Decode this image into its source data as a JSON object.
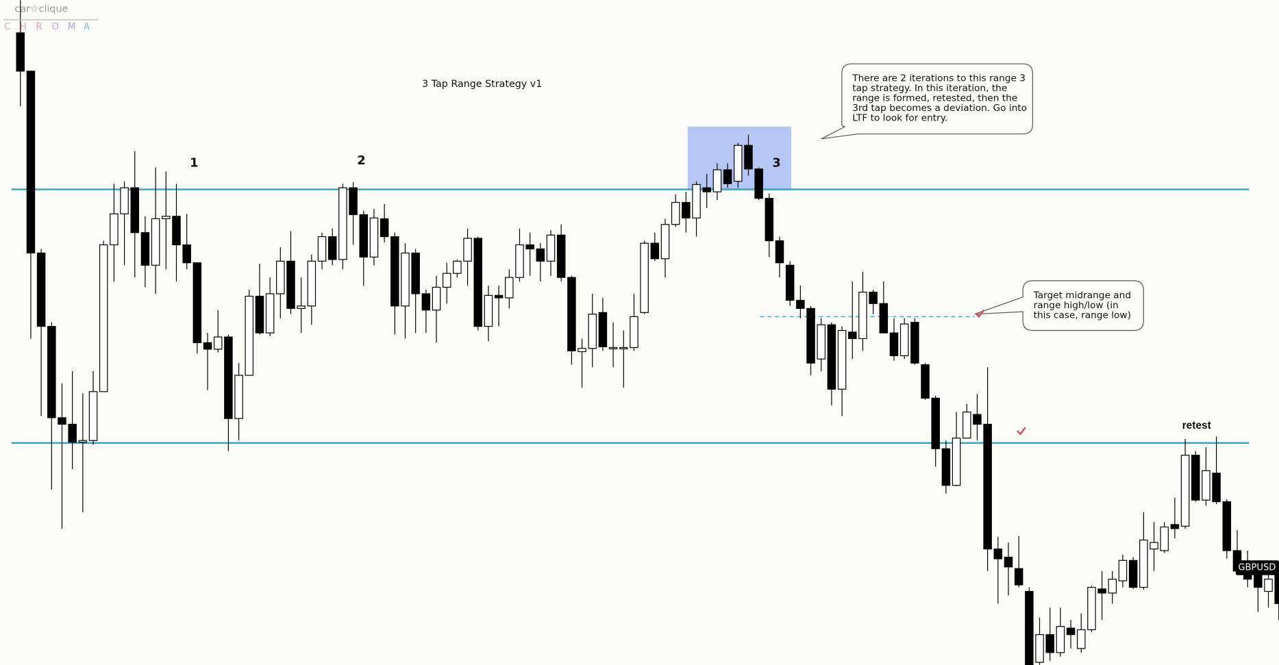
{
  "chart_data": {
    "type": "candlestick",
    "title": "3 Tap Range Strategy v1",
    "ylim": [
      0,
      815
    ],
    "open": [
      775,
      728,
      505,
      415,
      303,
      295,
      273,
      275,
      335,
      515,
      553,
      585,
      530,
      490,
      547,
      550,
      515,
      493,
      395,
      387,
      402,
      302,
      355,
      452,
      407,
      455,
      495,
      437,
      440,
      495,
      525,
      497,
      585,
      552,
      500,
      547,
      525,
      440,
      505,
      455,
      435,
      463,
      480,
      495,
      523,
      415,
      453,
      450,
      475,
      515,
      510,
      495,
      527,
      475,
      384,
      388,
      432,
      389,
      389,
      389,
      432,
      517,
      498,
      540,
      567,
      548,
      585,
      580,
      607,
      593,
      637,
      608,
      572,
      520,
      490,
      447,
      437,
      375,
      417,
      338,
      408,
      400,
      457,
      443,
      407,
      379,
      420,
      368,
      327,
      265,
      220,
      278,
      307,
      295,
      142,
      132,
      118,
      90,
      3,
      37,
      15,
      45,
      20,
      43,
      93,
      88,
      103,
      128,
      95,
      142,
      140,
      172,
      170,
      257,
      202,
      235,
      200,
      140,
      115,
      113,
      90,
      115
    ],
    "high": [
      815,
      728,
      510,
      420,
      345,
      360,
      333,
      360,
      520,
      590,
      593,
      630,
      550,
      610,
      605,
      590,
      553,
      493,
      407,
      435,
      405,
      370,
      460,
      492,
      475,
      512,
      532,
      475,
      503,
      530,
      535,
      590,
      592,
      557,
      559,
      565,
      530,
      517,
      510,
      460,
      477,
      493,
      497,
      535,
      525,
      465,
      465,
      485,
      535,
      530,
      517,
      533,
      540,
      477,
      400,
      455,
      450,
      420,
      410,
      455,
      520,
      530,
      547,
      577,
      580,
      593,
      602,
      615,
      615,
      640,
      650,
      610,
      578,
      525,
      495,
      465,
      440,
      425,
      420,
      415,
      470,
      482,
      460,
      470,
      425,
      425,
      425,
      370,
      330,
      275,
      310,
      320,
      332,
      365,
      157,
      150,
      158,
      95,
      58,
      70,
      70,
      55,
      63,
      97,
      115,
      115,
      135,
      132,
      187,
      175,
      175,
      205,
      277,
      262,
      267,
      280,
      203,
      165,
      140,
      125,
      120,
      120
    ],
    "low": [
      685,
      400,
      305,
      215,
      167,
      240,
      187,
      270,
      335,
      470,
      490,
      475,
      463,
      455,
      485,
      470,
      485,
      382,
      337,
      383,
      262,
      275,
      355,
      405,
      403,
      425,
      430,
      407,
      417,
      485,
      490,
      485,
      515,
      465,
      490,
      518,
      405,
      400,
      407,
      407,
      395,
      443,
      475,
      465,
      410,
      397,
      415,
      437,
      470,
      477,
      470,
      477,
      470,
      368,
      340,
      365,
      385,
      365,
      340,
      385,
      430,
      495,
      475,
      537,
      530,
      525,
      560,
      570,
      585,
      585,
      600,
      570,
      500,
      475,
      440,
      425,
      355,
      360,
      318,
      305,
      375,
      385,
      430,
      407,
      373,
      375,
      368,
      325,
      243,
      210,
      219,
      278,
      275,
      115,
      75,
      85,
      95,
      0,
      0,
      5,
      10,
      20,
      15,
      40,
      55,
      75,
      95,
      93,
      92,
      115,
      137,
      155,
      167,
      200,
      195,
      197,
      130,
      110,
      95,
      65,
      70,
      55
    ],
    "close": [
      728,
      505,
      415,
      303,
      295,
      273,
      275,
      335,
      515,
      553,
      585,
      530,
      490,
      547,
      550,
      515,
      493,
      395,
      387,
      402,
      302,
      355,
      452,
      407,
      455,
      495,
      437,
      440,
      495,
      525,
      497,
      585,
      552,
      500,
      548,
      525,
      440,
      505,
      455,
      435,
      463,
      480,
      495,
      523,
      415,
      453,
      450,
      475,
      515,
      510,
      495,
      527,
      475,
      385,
      388,
      430,
      390,
      389,
      389,
      427,
      517,
      498,
      540,
      567,
      548,
      589,
      580,
      607,
      590,
      637,
      608,
      572,
      520,
      493,
      447,
      437,
      370,
      417,
      338,
      410,
      400,
      457,
      443,
      407,
      379,
      418,
      370,
      327,
      265,
      220,
      278,
      310,
      295,
      142,
      130,
      120,
      98,
      0,
      37,
      15,
      47,
      37,
      43,
      95,
      88,
      105,
      128,
      95,
      153,
      150,
      169,
      167,
      257,
      202,
      238,
      200,
      140,
      115,
      105,
      95,
      105,
      75
    ],
    "levels": [
      583,
      272
    ],
    "midrange": 427,
    "tap_labels": [
      "1",
      "2",
      "3",
      "retest"
    ],
    "price_tag": {
      "label": "GBPUSD",
      "value": 119
    },
    "callouts": [
      {
        "lines": [
          "There are 2 iterations to this range 3",
          "tap strategy. In this iteration, the",
          "range is formed, retested, then the",
          "3rd tap becomes a deviation. Go into",
          "LTF to look for entry."
        ]
      },
      {
        "lines": [
          "Target midrange and",
          "range high/low (in",
          "this case, range low)"
        ]
      }
    ]
  },
  "logo": {
    "name": "car☆clique",
    "letters": [
      "C",
      "H",
      "R",
      "O",
      "M",
      "A"
    ]
  }
}
